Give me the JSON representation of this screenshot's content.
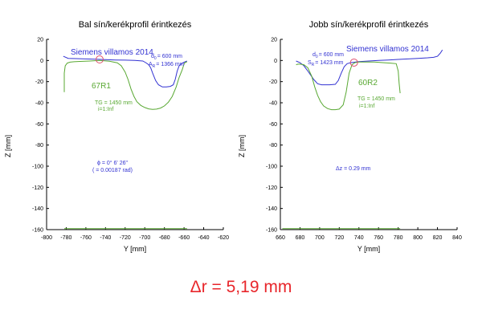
{
  "charts": [
    {
      "title": "Bal sín/kerékprofil érintkezés",
      "xlabel": "Y [mm]",
      "ylabel": "Z [mm]",
      "xlim": [
        -800,
        -620
      ],
      "ylim": [
        -160,
        20
      ],
      "xticks": [
        -800,
        -780,
        -760,
        -740,
        -720,
        -700,
        -680,
        -660,
        -640,
        -620
      ],
      "yticks": [
        20,
        0,
        -20,
        -40,
        -60,
        -80,
        -100,
        -120,
        -140,
        -160
      ],
      "wheel_label": "Siemens villamos 2014",
      "d0_label": "d",
      "d0_sub": "0",
      "d0_value": "= 600 mm",
      "r_label": "A",
      "r_sub": "R",
      "r_value": "= 1366 mm",
      "rail_label": "67R1",
      "tg_label": "TG = 1450 mm",
      "i_label": "i=1:Inf",
      "note_line1": "ϕ = 0° 6' 26\"",
      "note_line2": "( = 0.00187 rad)",
      "contact_point": [
        -746,
        1
      ]
    },
    {
      "title": "Jobb sín/kerékprofil érintkezés",
      "xlabel": "Y [mm]",
      "ylabel": "Z [mm]",
      "xlim": [
        660,
        840
      ],
      "ylim": [
        -160,
        20
      ],
      "xticks": [
        660,
        680,
        700,
        720,
        740,
        760,
        780,
        800,
        820,
        840
      ],
      "yticks": [
        20,
        0,
        -20,
        -40,
        -60,
        -80,
        -100,
        -120,
        -140,
        -160
      ],
      "wheel_label": "Siemens villamos 2014",
      "d0_label": "d",
      "d0_sub": "0",
      "d0_value": "= 600 mm",
      "r_label": "S",
      "r_sub": "R",
      "r_value": "= 1423 mm",
      "rail_label": "60R2",
      "tg_label": "TG = 1450 mm",
      "i_label": "i=1:Inf",
      "note_line1": "Δz = 0.29 mm",
      "contact_point": [
        735,
        -2
      ]
    }
  ],
  "footer": "Δr = 5,19 mm",
  "colors": {
    "wheel": "#3232d2",
    "rail": "#58a832",
    "contact": "#e0506e",
    "axis": "#000000",
    "footer": "#e8262b"
  },
  "chart_data": [
    {
      "type": "line",
      "title": "Bal sín/kerékprofil érintkezés",
      "xlabel": "Y [mm]",
      "ylabel": "Z [mm]",
      "xlim": [
        -800,
        -620
      ],
      "ylim": [
        -160,
        20
      ],
      "grid": false,
      "series": [
        {
          "name": "Siemens villamos 2014",
          "color": "#3232d2",
          "x": [
            -783,
            -778,
            -770,
            -760,
            -750,
            -740,
            -730,
            -720,
            -710,
            -702,
            -699,
            -696,
            -694,
            -692,
            -689,
            -686,
            -682,
            -678,
            -674,
            -671,
            -669,
            -667,
            -665,
            -661,
            -657
          ],
          "y": [
            4,
            2,
            1.8,
            1.5,
            1.2,
            0.8,
            0.5,
            0.3,
            0,
            -0.5,
            -2,
            -4,
            -7,
            -12,
            -19,
            -23,
            -25,
            -25,
            -24.5,
            -23,
            -18,
            -10,
            -5,
            -2,
            -0.5
          ]
        },
        {
          "name": "67R1",
          "color": "#58a832",
          "x": [
            -782,
            -782,
            -781,
            -779,
            -776,
            -772,
            -766,
            -756,
            -746,
            -736,
            -728,
            -724,
            -720,
            -717,
            -714,
            -711,
            -708,
            -704,
            -700,
            -696,
            -692,
            -688,
            -684,
            -680,
            -676,
            -672,
            -668,
            -665,
            -662,
            -660,
            -659,
            -658,
            -657
          ],
          "y": [
            -30,
            -12,
            -5,
            -2.5,
            -1.6,
            -1.2,
            -0.9,
            -0.5,
            0,
            -0.7,
            -2.2,
            -5,
            -11,
            -18,
            -27,
            -34,
            -39,
            -42.5,
            -44.5,
            -45.8,
            -46.3,
            -46,
            -45,
            -43,
            -39.5,
            -34,
            -25,
            -16,
            -9,
            -3.5,
            -2,
            -1.5,
            -1.5
          ]
        },
        {
          "name": "base",
          "color": "#58a832",
          "x": [
            -782,
            -657
          ],
          "y": [
            -159,
            -159
          ]
        }
      ]
    },
    {
      "type": "line",
      "title": "Jobb sín/kerékprofil érintkezés",
      "xlabel": "Y [mm]",
      "ylabel": "Z [mm]",
      "xlim": [
        660,
        840
      ],
      "ylim": [
        -160,
        20
      ],
      "grid": false,
      "series": [
        {
          "name": "Siemens villamos 2014",
          "color": "#3232d2",
          "x": [
            676,
            680,
            684,
            688,
            694,
            698,
            702,
            706,
            710,
            716,
            719,
            722,
            725,
            728,
            732,
            740,
            750,
            760,
            770,
            780,
            790,
            800,
            810,
            816,
            820,
            823,
            825
          ],
          "y": [
            -0.5,
            -2,
            -5,
            -10,
            -18,
            -22,
            -23,
            -23,
            -23,
            -22.5,
            -19,
            -12,
            -6,
            -3,
            -2,
            -1,
            -0.5,
            0,
            0.5,
            1,
            1.5,
            2,
            2.5,
            3,
            4,
            7,
            10
          ]
        },
        {
          "name": "60R2",
          "color": "#58a832",
          "x": [
            676,
            678,
            680,
            684,
            688,
            692,
            695,
            698,
            701,
            704,
            708,
            712,
            716,
            720,
            724,
            727,
            730,
            733,
            736,
            740,
            748,
            756,
            764,
            772,
            778,
            780,
            781,
            782
          ],
          "y": [
            -4,
            -3.5,
            -3.5,
            -4,
            -7,
            -15,
            -25,
            -33,
            -39,
            -43,
            -45.5,
            -46.5,
            -46.5,
            -46,
            -42,
            -30,
            -12,
            -4,
            -2,
            -1.5,
            -1.5,
            -1.5,
            -2,
            -2.5,
            -3,
            -10,
            -22,
            -31
          ]
        },
        {
          "name": "base",
          "color": "#58a832",
          "x": [
            662,
            782
          ],
          "y": [
            -159,
            -159
          ]
        }
      ]
    }
  ]
}
